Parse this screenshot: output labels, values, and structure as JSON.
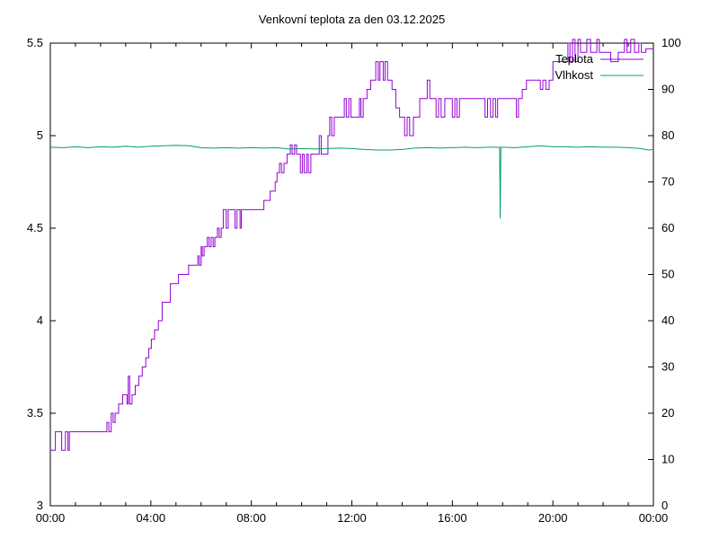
{
  "chart_data": {
    "type": "line",
    "title": "Venkovní teplota za den 03.12.2025",
    "xlabel": "",
    "ylabel_left": "",
    "ylabel_right": "",
    "x_range_hours": [
      0,
      24
    ],
    "x_tick_labels": [
      "00:00",
      "04:00",
      "08:00",
      "12:00",
      "16:00",
      "20:00",
      "00:00"
    ],
    "x_major_tick_hours": [
      0,
      4,
      8,
      12,
      16,
      20,
      24
    ],
    "x_minor_tick_every_hours": 1,
    "y_left_range": [
      3,
      5.5
    ],
    "y_left_tick_labels": [
      "3",
      "3.5",
      "4",
      "4.5",
      "5",
      "5.5"
    ],
    "y_left_tick_values": [
      3,
      3.5,
      4,
      4.5,
      5,
      5.5
    ],
    "y_right_range": [
      0,
      100
    ],
    "y_right_tick_labels": [
      "0",
      "10",
      "20",
      "30",
      "40",
      "50",
      "60",
      "70",
      "80",
      "90",
      "100"
    ],
    "y_right_tick_values": [
      0,
      10,
      20,
      30,
      40,
      50,
      60,
      70,
      80,
      90,
      100
    ],
    "grid": false,
    "frame_color": "#000000",
    "legend": {
      "position": "top-right-inside",
      "entries": [
        {
          "label": "Teplota",
          "color": "#9400d3"
        },
        {
          "label": "Vlhkost",
          "color": "#009e73"
        }
      ]
    },
    "series": [
      {
        "name": "Teplota",
        "axis": "left",
        "color": "#9400d3",
        "mode": "steps",
        "points": [
          [
            0,
            3.3
          ],
          [
            0.2,
            3.4
          ],
          [
            0.45,
            3.3
          ],
          [
            0.6,
            3.4
          ],
          [
            0.7,
            3.3
          ],
          [
            0.76,
            3.4
          ],
          [
            2.25,
            3.45
          ],
          [
            2.33,
            3.4
          ],
          [
            2.42,
            3.5
          ],
          [
            2.5,
            3.45
          ],
          [
            2.58,
            3.5
          ],
          [
            2.72,
            3.55
          ],
          [
            2.88,
            3.6
          ],
          [
            3.05,
            3.55
          ],
          [
            3.1,
            3.7
          ],
          [
            3.16,
            3.55
          ],
          [
            3.25,
            3.6
          ],
          [
            3.38,
            3.65
          ],
          [
            3.52,
            3.7
          ],
          [
            3.66,
            3.75
          ],
          [
            3.8,
            3.8
          ],
          [
            3.92,
            3.85
          ],
          [
            4.02,
            3.9
          ],
          [
            4.15,
            3.95
          ],
          [
            4.3,
            4.0
          ],
          [
            4.45,
            4.1
          ],
          [
            4.78,
            4.2
          ],
          [
            5.1,
            4.25
          ],
          [
            5.5,
            4.3
          ],
          [
            5.87,
            4.35
          ],
          [
            5.93,
            4.3
          ],
          [
            6.0,
            4.4
          ],
          [
            6.05,
            4.35
          ],
          [
            6.12,
            4.4
          ],
          [
            6.25,
            4.45
          ],
          [
            6.32,
            4.4
          ],
          [
            6.4,
            4.45
          ],
          [
            6.48,
            4.4
          ],
          [
            6.55,
            4.45
          ],
          [
            6.65,
            4.5
          ],
          [
            6.72,
            4.45
          ],
          [
            6.8,
            4.5
          ],
          [
            6.88,
            4.6
          ],
          [
            7.0,
            4.5
          ],
          [
            7.08,
            4.6
          ],
          [
            7.35,
            4.5
          ],
          [
            7.43,
            4.6
          ],
          [
            7.55,
            4.5
          ],
          [
            7.6,
            4.6
          ],
          [
            8.5,
            4.65
          ],
          [
            8.75,
            4.7
          ],
          [
            8.95,
            4.75
          ],
          [
            9.02,
            4.8
          ],
          [
            9.12,
            4.85
          ],
          [
            9.2,
            4.8
          ],
          [
            9.3,
            4.85
          ],
          [
            9.42,
            4.9
          ],
          [
            9.55,
            4.95
          ],
          [
            9.62,
            4.9
          ],
          [
            9.72,
            4.95
          ],
          [
            9.8,
            4.9
          ],
          [
            9.95,
            4.8
          ],
          [
            10.03,
            4.9
          ],
          [
            10.1,
            4.8
          ],
          [
            10.2,
            4.9
          ],
          [
            10.27,
            4.8
          ],
          [
            10.37,
            4.9
          ],
          [
            10.7,
            5.0
          ],
          [
            10.78,
            4.9
          ],
          [
            11.05,
            5.0
          ],
          [
            11.12,
            5.1
          ],
          [
            11.2,
            5.0
          ],
          [
            11.3,
            5.1
          ],
          [
            11.7,
            5.2
          ],
          [
            11.78,
            5.1
          ],
          [
            11.88,
            5.2
          ],
          [
            11.96,
            5.1
          ],
          [
            12.3,
            5.2
          ],
          [
            12.36,
            5.1
          ],
          [
            12.45,
            5.2
          ],
          [
            12.6,
            5.25
          ],
          [
            12.75,
            5.3
          ],
          [
            12.95,
            5.4
          ],
          [
            13.05,
            5.3
          ],
          [
            13.12,
            5.4
          ],
          [
            13.25,
            5.3
          ],
          [
            13.32,
            5.4
          ],
          [
            13.42,
            5.3
          ],
          [
            13.6,
            5.25
          ],
          [
            13.75,
            5.15
          ],
          [
            13.9,
            5.1
          ],
          [
            14.1,
            5.0
          ],
          [
            14.2,
            5.1
          ],
          [
            14.3,
            5.0
          ],
          [
            14.45,
            5.1
          ],
          [
            14.7,
            5.2
          ],
          [
            15.0,
            5.3
          ],
          [
            15.1,
            5.2
          ],
          [
            15.35,
            5.1
          ],
          [
            15.45,
            5.2
          ],
          [
            15.55,
            5.1
          ],
          [
            15.7,
            5.2
          ],
          [
            16.0,
            5.1
          ],
          [
            16.1,
            5.2
          ],
          [
            16.18,
            5.1
          ],
          [
            16.28,
            5.2
          ],
          [
            17.3,
            5.1
          ],
          [
            17.4,
            5.2
          ],
          [
            17.52,
            5.1
          ],
          [
            17.62,
            5.2
          ],
          [
            17.72,
            5.1
          ],
          [
            17.8,
            5.2
          ],
          [
            18.55,
            5.1
          ],
          [
            18.63,
            5.2
          ],
          [
            18.78,
            5.25
          ],
          [
            18.95,
            5.3
          ],
          [
            19.5,
            5.25
          ],
          [
            19.6,
            5.3
          ],
          [
            19.72,
            5.25
          ],
          [
            19.85,
            5.3
          ],
          [
            20.0,
            5.4
          ],
          [
            20.6,
            5.5
          ],
          [
            20.68,
            5.4
          ],
          [
            20.78,
            5.52
          ],
          [
            20.88,
            5.4
          ],
          [
            21.0,
            5.52
          ],
          [
            21.1,
            5.45
          ],
          [
            21.35,
            5.52
          ],
          [
            21.5,
            5.45
          ],
          [
            21.75,
            5.52
          ],
          [
            21.85,
            5.45
          ],
          [
            22.3,
            5.4
          ],
          [
            22.6,
            5.45
          ],
          [
            22.85,
            5.52
          ],
          [
            22.95,
            5.45
          ],
          [
            23.1,
            5.52
          ],
          [
            23.25,
            5.45
          ],
          [
            23.42,
            5.5
          ],
          [
            23.52,
            5.45
          ],
          [
            23.7,
            5.47
          ],
          [
            24,
            5.47
          ]
        ]
      },
      {
        "name": "Vlhkost",
        "axis": "right",
        "color": "#009e73",
        "mode": "line",
        "points": [
          [
            0,
            77.5
          ],
          [
            0.5,
            77.4
          ],
          [
            1,
            77.6
          ],
          [
            1.5,
            77.4
          ],
          [
            2,
            77.6
          ],
          [
            2.5,
            77.5
          ],
          [
            3,
            77.7
          ],
          [
            3.5,
            77.5
          ],
          [
            4,
            77.7
          ],
          [
            4.5,
            77.8
          ],
          [
            5,
            77.9
          ],
          [
            5.5,
            77.8
          ],
          [
            6,
            77.4
          ],
          [
            6.5,
            77.3
          ],
          [
            7,
            77.4
          ],
          [
            7.5,
            77.3
          ],
          [
            8,
            77.4
          ],
          [
            8.5,
            77.3
          ],
          [
            9,
            77.4
          ],
          [
            9.5,
            77.1
          ],
          [
            10,
            77.2
          ],
          [
            10.5,
            77.1
          ],
          [
            11,
            77.2
          ],
          [
            11.5,
            77.3
          ],
          [
            12,
            77.2
          ],
          [
            12.5,
            77.0
          ],
          [
            13,
            76.9
          ],
          [
            13.5,
            76.9
          ],
          [
            14,
            77.0
          ],
          [
            14.5,
            77.3
          ],
          [
            15,
            77.4
          ],
          [
            15.5,
            77.3
          ],
          [
            16,
            77.4
          ],
          [
            16.5,
            77.5
          ],
          [
            17,
            77.4
          ],
          [
            17.5,
            77.5
          ],
          [
            17.88,
            77.5
          ],
          [
            17.9,
            62.1
          ],
          [
            17.93,
            77.5
          ],
          [
            18.5,
            77.4
          ],
          [
            19,
            77.6
          ],
          [
            19.5,
            77.8
          ],
          [
            20,
            77.6
          ],
          [
            20.5,
            77.6
          ],
          [
            21,
            77.5
          ],
          [
            21.5,
            77.6
          ],
          [
            22,
            77.5
          ],
          [
            22.5,
            77.5
          ],
          [
            23,
            77.4
          ],
          [
            23.5,
            77.2
          ],
          [
            23.8,
            76.9
          ],
          [
            24,
            77.0
          ]
        ]
      }
    ]
  }
}
